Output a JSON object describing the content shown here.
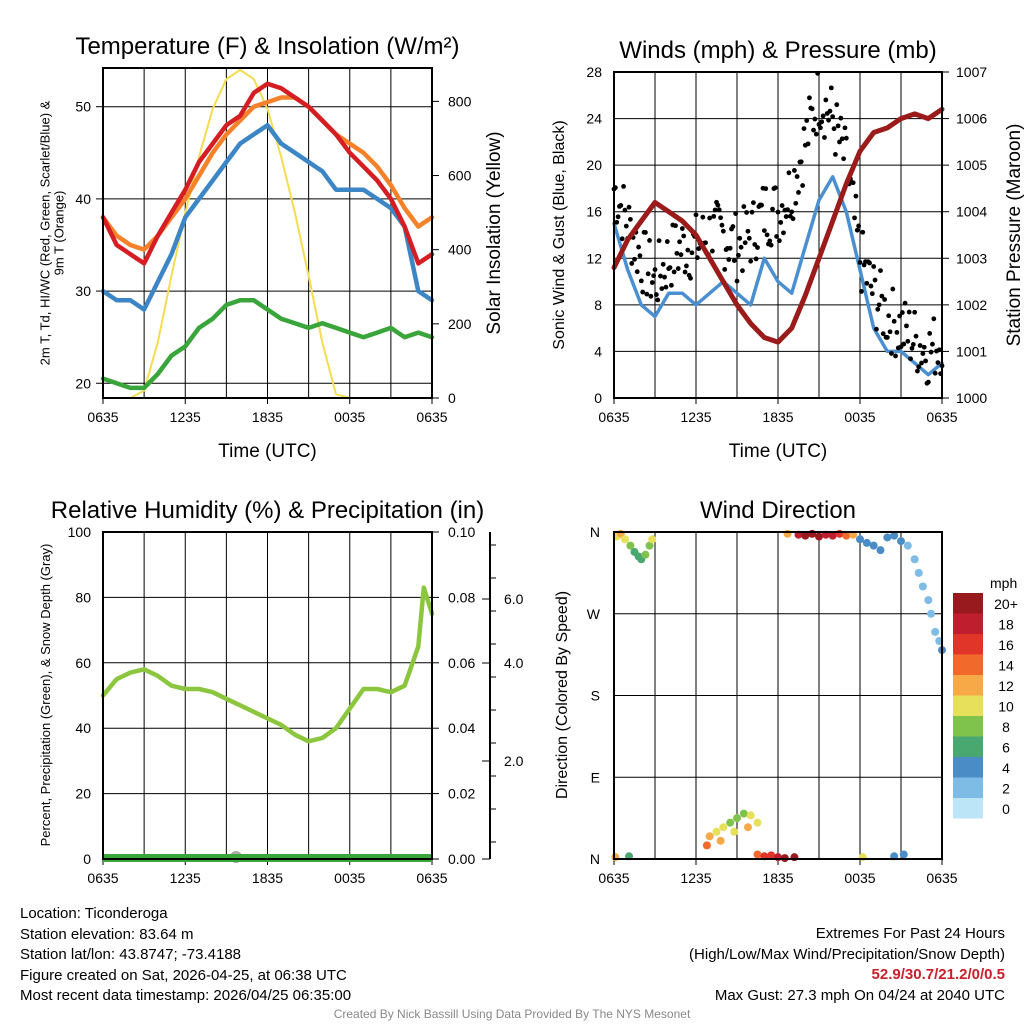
{
  "chart_data": [
    {
      "type": "line",
      "title": "Temperature (F) & Insolation (W/m²)",
      "xlabel": "Time (UTC)",
      "ylabel": "2m T, Td, HI/WC (Red, Green, Scarlet/Blue) & 9m T (Orange)",
      "ylabel_line1": "2m T, T",
      "ylabel_sub": "d",
      "ylabel_line1b": ", HI/WC (Red, Green, Scarlet/Blue)",
      "ylabel_line2": "& 9m T (Orange)",
      "y2label": "Solar Insolation (Yellow)",
      "x_ticks": [
        "0635",
        "1235",
        "1835",
        "0035",
        "0635"
      ],
      "y_ticks": [
        "20",
        "30",
        "40",
        "50"
      ],
      "y2_ticks": [
        "0",
        "200",
        "400",
        "600",
        "800"
      ],
      "ylim": [
        18.4,
        54.2
      ],
      "y2lim": [
        0,
        890
      ],
      "x_hours": [
        0,
        1,
        2,
        3,
        4,
        5,
        6,
        7,
        8,
        9,
        10,
        11,
        12,
        13,
        14,
        15,
        16,
        17,
        18,
        19,
        20,
        21,
        22,
        23,
        24
      ],
      "series": [
        {
          "name": "Insolation",
          "color": "#f5dc50",
          "axis": "right",
          "values": [
            0,
            0,
            0,
            20,
            150,
            330,
            500,
            650,
            780,
            860,
            885,
            860,
            780,
            650,
            500,
            330,
            150,
            10,
            0,
            0,
            0,
            0,
            0,
            0,
            0
          ]
        },
        {
          "name": "Dewpoint",
          "color": "#3aa53a",
          "values": [
            20.5,
            20,
            19.5,
            19.5,
            21,
            23,
            24,
            26,
            27,
            28.5,
            29,
            29,
            28,
            27,
            26.5,
            26,
            26.5,
            26,
            25.5,
            25,
            25.5,
            26,
            25,
            25.5,
            25
          ]
        },
        {
          "name": "HI/WC",
          "color": "#3d86c6",
          "values": [
            30,
            29,
            29,
            28,
            31,
            34,
            38,
            40,
            42,
            44,
            46,
            47,
            48,
            46,
            45,
            44,
            43,
            41,
            41,
            41,
            40,
            39,
            37,
            30,
            29
          ]
        },
        {
          "name": "9m T",
          "color": "#f5822a",
          "values": [
            38,
            36,
            35,
            34.5,
            36,
            38,
            40,
            42.5,
            45,
            47,
            48.5,
            50,
            50.5,
            51,
            51,
            50,
            48.5,
            47,
            46,
            45,
            43.5,
            41.5,
            39,
            37,
            38
          ]
        },
        {
          "name": "2m T",
          "color": "#d41e24",
          "values": [
            38,
            35,
            34,
            33,
            36,
            38.5,
            41,
            44,
            46,
            48,
            49,
            51.5,
            52.5,
            52,
            51,
            50,
            48.5,
            47,
            45,
            43.5,
            42,
            40,
            37,
            33,
            34
          ]
        }
      ]
    },
    {
      "type": "line",
      "title": "Winds (mph) & Pressure (mb)",
      "xlabel": "Time (UTC)",
      "ylabel": "Sonic Wind & Gust (Blue, Black)",
      "y2label": "Station Pressure (Maroon)",
      "x_ticks": [
        "0635",
        "1235",
        "1835",
        "0035",
        "0635"
      ],
      "y_ticks": [
        "0",
        "4",
        "8",
        "12",
        "16",
        "20",
        "24",
        "28"
      ],
      "y2_ticks": [
        "1000",
        "1001",
        "1002",
        "1003",
        "1004",
        "1005",
        "1006",
        "1007"
      ],
      "ylim": [
        0,
        28
      ],
      "y2lim": [
        1000,
        1007
      ],
      "x_hours": [
        0,
        1,
        2,
        3,
        4,
        5,
        6,
        7,
        8,
        9,
        10,
        11,
        12,
        13,
        14,
        15,
        16,
        17,
        18,
        19,
        20,
        21,
        22,
        23,
        24
      ],
      "series": [
        {
          "name": "Wind",
          "color": "#4a90d0",
          "values": [
            15,
            11,
            8,
            7,
            9,
            9,
            8,
            9,
            10,
            9,
            8,
            12,
            10,
            9,
            13,
            17,
            19,
            16,
            11,
            6,
            4,
            4,
            3,
            2,
            3
          ]
        },
        {
          "name": "Gust",
          "color": "#000000",
          "type": "scatter",
          "values": [
            18,
            15,
            12,
            10,
            12,
            13,
            13,
            14,
            14,
            13,
            14,
            16,
            16,
            18,
            22,
            26,
            24,
            20,
            12,
            9,
            7,
            6,
            5,
            4,
            5
          ]
        },
        {
          "name": "Pressure",
          "color": "#9b1b1b",
          "axis": "right",
          "values": [
            1002.8,
            1003.4,
            1003.8,
            1004.2,
            1004.0,
            1003.8,
            1003.5,
            1003.0,
            1002.5,
            1002.0,
            1001.6,
            1001.3,
            1001.2,
            1001.5,
            1002.2,
            1003.0,
            1003.8,
            1004.6,
            1005.3,
            1005.7,
            1005.8,
            1006.0,
            1006.1,
            1006.0,
            1006.2
          ]
        }
      ]
    },
    {
      "type": "line",
      "title": "Relative Humidity (%) & Precipitation (in)",
      "ylabel": "Percent, Precipitation (Green), & Snow Depth (Gray)",
      "x_ticks": [
        "0635",
        "1235",
        "1835",
        "0035",
        "0635"
      ],
      "y_ticks": [
        "0",
        "20",
        "40",
        "60",
        "80",
        "100"
      ],
      "y2_ticks": [
        "0.00",
        "0.02",
        "0.04",
        "0.06",
        "0.08",
        "0.10"
      ],
      "y3_ticks": [
        "2.0",
        "4.0",
        "6.0"
      ],
      "ylim": [
        0,
        100
      ],
      "y2lim": [
        0,
        0.1
      ],
      "x_hours": [
        0,
        1,
        2,
        3,
        4,
        5,
        6,
        7,
        8,
        9,
        10,
        11,
        12,
        13,
        14,
        15,
        16,
        17,
        18,
        19,
        20,
        21,
        22,
        23,
        23.4,
        24
      ],
      "series": [
        {
          "name": "RH",
          "color": "#8cc63f",
          "values": [
            50,
            55,
            57,
            58,
            56,
            53,
            52,
            52,
            51,
            49,
            47,
            45,
            43,
            41,
            38,
            36,
            37,
            40,
            46,
            52,
            52,
            51,
            53,
            65,
            83,
            75
          ]
        },
        {
          "name": "Precipitation",
          "color": "#3aa53a",
          "values": [
            0,
            0
          ]
        },
        {
          "name": "Snow Depth",
          "color": "#aaaaaa",
          "values": [
            0,
            0
          ]
        }
      ]
    },
    {
      "type": "scatter",
      "title": "Wind Direction",
      "ylabel": "Direction (Colored By Speed)",
      "x_ticks": [
        "0635",
        "1235",
        "1835",
        "0035",
        "0635"
      ],
      "y_ticks": [
        "N",
        "E",
        "S",
        "W",
        "N"
      ],
      "legend": {
        "title": "mph",
        "placement": "right",
        "labels": [
          "20+",
          "18",
          "16",
          "14",
          "12",
          "10",
          "8",
          "6",
          "4",
          "2",
          "0"
        ],
        "colors": [
          "#981a1e",
          "#be1e2d",
          "#e2352a",
          "#f26a2b",
          "#f8a947",
          "#e6e05a",
          "#7fc24c",
          "#48a870",
          "#4a8cc6",
          "#7ebce6",
          "#bde5f8"
        ]
      },
      "points_hour_dir_speed": [
        [
          0.1,
          2,
          11
        ],
        [
          0.2,
          355,
          10
        ],
        [
          0.5,
          358,
          11
        ],
        [
          0.8,
          352,
          9
        ],
        [
          1.1,
          3,
          6
        ],
        [
          1.2,
          345,
          8
        ],
        [
          1.5,
          338,
          6
        ],
        [
          1.8,
          333,
          5
        ],
        [
          2,
          330,
          6
        ],
        [
          2.3,
          335,
          7
        ],
        [
          2.6,
          345,
          8
        ],
        [
          2.8,
          352,
          9
        ],
        [
          6.8,
          15,
          13
        ],
        [
          7,
          25,
          11
        ],
        [
          7.5,
          30,
          10
        ],
        [
          7.8,
          20,
          12
        ],
        [
          8,
          35,
          9
        ],
        [
          8.5,
          40,
          8
        ],
        [
          8.8,
          30,
          9
        ],
        [
          9,
          45,
          7
        ],
        [
          9.5,
          50,
          8
        ],
        [
          9.8,
          35,
          11
        ],
        [
          10,
          48,
          9
        ],
        [
          10.5,
          40,
          10
        ],
        [
          10.5,
          5,
          14
        ],
        [
          11,
          3,
          15
        ],
        [
          11.5,
          4,
          16
        ],
        [
          12,
          2,
          18
        ],
        [
          12.5,
          1,
          19
        ],
        [
          13.2,
          2,
          20
        ],
        [
          12.7,
          358,
          12
        ],
        [
          13.5,
          357,
          17
        ],
        [
          14,
          356,
          19
        ],
        [
          14.5,
          358,
          20
        ],
        [
          15,
          355,
          20
        ],
        [
          15.5,
          357,
          18
        ],
        [
          16,
          356,
          17
        ],
        [
          16.5,
          358,
          15
        ],
        [
          17,
          356,
          13
        ],
        [
          17.5,
          357,
          11
        ],
        [
          18.2,
          2,
          9
        ],
        [
          18,
          352,
          4
        ],
        [
          18.5,
          348,
          4
        ],
        [
          19,
          345,
          4
        ],
        [
          19.5,
          340,
          3
        ],
        [
          20,
          354,
          4
        ],
        [
          20.5,
          356,
          3
        ],
        [
          20.5,
          3,
          4
        ],
        [
          21,
          350,
          4
        ],
        [
          21.2,
          5,
          3
        ],
        [
          21.5,
          345,
          2
        ],
        [
          22,
          330,
          1
        ],
        [
          22.3,
          315,
          2
        ],
        [
          22.6,
          300,
          1
        ],
        [
          23,
          285,
          1
        ],
        [
          23.2,
          270,
          2
        ],
        [
          23.5,
          250,
          1
        ],
        [
          23.8,
          240,
          2
        ],
        [
          24,
          230,
          3
        ]
      ]
    }
  ],
  "footer": {
    "location": "Location: Ticonderoga",
    "elevation": "Station elevation: 83.64 m",
    "latlon": "Station lat/lon: 43.8747; -73.4188",
    "created": "Figure created on Sat, 2026-04-25, at 06:38 UTC",
    "recent": "Most recent data timestamp: 2026/04/25 06:35:00",
    "extremes_title": "Extremes For Past 24 Hours",
    "extremes_desc": "(High/Low/Max Wind/Precipitation/Snow Depth)",
    "extremes_values": "52.9/30.7/21.2/0/0.5",
    "max_gust": "Max Gust: 27.3 mph On 04/24 at 2040 UTC",
    "credit": "Created By Nick Bassill Using Data Provided By The NYS Mesonet"
  }
}
